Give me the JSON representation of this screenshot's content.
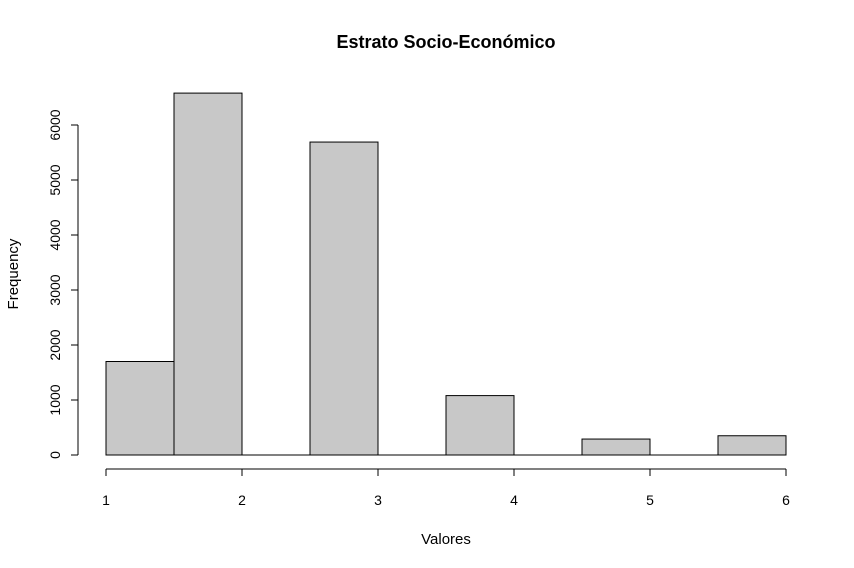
{
  "chart_data": {
    "type": "bar",
    "title": "Estrato Socio-Económico",
    "xlabel": "Valores",
    "ylabel": "Frequency",
    "xlim": [
      1,
      6
    ],
    "ylim": [
      0,
      6600
    ],
    "x_ticks": [
      "1",
      "2",
      "3",
      "4",
      "5",
      "6"
    ],
    "y_ticks": [
      "0",
      "1000",
      "2000",
      "3000",
      "4000",
      "5000",
      "6000"
    ],
    "bins": [
      {
        "start": 1.0,
        "end": 1.5,
        "value": 1700
      },
      {
        "start": 1.5,
        "end": 2.0,
        "value": 6580
      },
      {
        "start": 2.0,
        "end": 2.5,
        "value": 0
      },
      {
        "start": 2.5,
        "end": 3.0,
        "value": 5690
      },
      {
        "start": 3.0,
        "end": 3.5,
        "value": 0
      },
      {
        "start": 3.5,
        "end": 4.0,
        "value": 1080
      },
      {
        "start": 4.0,
        "end": 4.5,
        "value": 0
      },
      {
        "start": 4.5,
        "end": 5.0,
        "value": 290
      },
      {
        "start": 5.0,
        "end": 5.5,
        "value": 0
      },
      {
        "start": 5.5,
        "end": 6.0,
        "value": 350
      }
    ],
    "bar_color": "#c8c8c8",
    "grid": false
  }
}
